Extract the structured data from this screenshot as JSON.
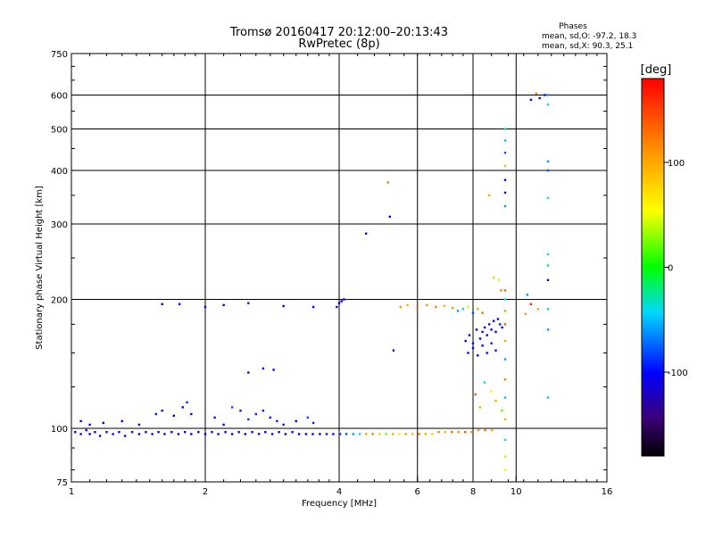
{
  "chart_data": {
    "type": "scatter",
    "title": "Tromsø 20160417 20:12:00–20:13:43",
    "subtitle": "RwPretec (8p)",
    "xlabel": "Frequency [MHz]",
    "ylabel": "Stationary phase Virtual Height [km]",
    "x_scale": "log2",
    "y_scale": "log",
    "xlim": [
      1,
      16
    ],
    "ylim": [
      75,
      750
    ],
    "x_ticks": [
      1,
      2,
      4,
      6,
      8,
      10,
      16
    ],
    "x_tick_labels": [
      "1",
      "2",
      "4",
      "6",
      "8",
      "10",
      "16"
    ],
    "y_ticks": [
      75,
      100,
      200,
      300,
      400,
      500,
      600,
      750
    ],
    "y_tick_labels": [
      "75",
      "100",
      "200",
      "300",
      "400",
      "500",
      "600",
      "750"
    ],
    "grid": true,
    "phase_box": {
      "title": "Phases",
      "line_o": "mean, sd,O: -97.2, 18.3",
      "line_x": "mean, sd,X:  90.3, 25.1"
    },
    "colorbar": {
      "label": "[deg]",
      "range": [
        -180,
        180
      ],
      "ticks": [
        100,
        0,
        -100
      ],
      "tick_labels": [
        "100",
        "0",
        "-100"
      ],
      "colormap": "rainbow"
    },
    "series": [
      {
        "points": [
          [
            1.02,
            98,
            -105
          ],
          [
            1.05,
            97,
            -110
          ],
          [
            1.08,
            99,
            -100
          ],
          [
            1.1,
            97,
            -108
          ],
          [
            1.13,
            98,
            -102
          ],
          [
            1.16,
            96,
            -112
          ],
          [
            1.2,
            98,
            -104
          ],
          [
            1.24,
            97,
            -106
          ],
          [
            1.28,
            98,
            -100
          ],
          [
            1.32,
            96,
            -110
          ],
          [
            1.37,
            98,
            -104
          ],
          [
            1.42,
            97,
            -108
          ],
          [
            1.47,
            98,
            -102
          ],
          [
            1.52,
            97,
            -106
          ],
          [
            1.57,
            98,
            -100
          ],
          [
            1.62,
            97,
            -110
          ],
          [
            1.68,
            98,
            -104
          ],
          [
            1.74,
            97,
            -106
          ],
          [
            1.8,
            98,
            -102
          ],
          [
            1.86,
            97,
            -108
          ],
          [
            1.93,
            98,
            -104
          ],
          [
            2.0,
            97,
            -100
          ],
          [
            2.07,
            98,
            -106
          ],
          [
            2.14,
            97,
            -104
          ],
          [
            2.22,
            98,
            -100
          ],
          [
            2.3,
            97,
            -108
          ],
          [
            2.38,
            98,
            -102
          ],
          [
            2.46,
            97,
            -106
          ],
          [
            2.55,
            98,
            -104
          ],
          [
            2.64,
            97,
            -100
          ],
          [
            2.73,
            98,
            -106
          ],
          [
            2.83,
            97,
            -104
          ],
          [
            2.93,
            98,
            -100
          ],
          [
            3.03,
            97,
            -108
          ],
          [
            3.14,
            98,
            -102
          ],
          [
            3.25,
            97,
            -106
          ],
          [
            3.37,
            97,
            -104
          ],
          [
            3.49,
            97,
            -100
          ],
          [
            3.62,
            97,
            -106
          ],
          [
            3.75,
            97,
            -98
          ],
          [
            3.88,
            97,
            -102
          ],
          [
            4.02,
            97,
            -90
          ],
          [
            4.15,
            97,
            -80
          ],
          [
            4.3,
            97,
            -60
          ],
          [
            4.45,
            97,
            -40
          ],
          [
            4.6,
            97,
            100
          ],
          [
            4.76,
            97,
            120
          ],
          [
            4.93,
            97,
            80
          ],
          [
            5.1,
            97,
            20
          ],
          [
            5.28,
            97,
            100
          ],
          [
            5.46,
            97,
            60
          ],
          [
            5.65,
            97,
            110
          ],
          [
            5.85,
            97,
            90
          ],
          [
            6.05,
            97,
            130
          ],
          [
            6.26,
            97,
            100
          ],
          [
            6.48,
            97,
            80
          ],
          [
            6.7,
            98,
            120
          ],
          [
            6.93,
            98,
            100
          ],
          [
            7.17,
            98,
            130
          ],
          [
            7.42,
            98,
            110
          ],
          [
            7.68,
            98,
            140
          ],
          [
            7.95,
            98,
            120
          ],
          [
            8.23,
            99,
            110
          ],
          [
            8.52,
            99,
            130
          ],
          [
            8.82,
            99,
            100
          ],
          [
            1.05,
            104,
            -110
          ],
          [
            1.1,
            102,
            -100
          ],
          [
            1.18,
            103,
            -105
          ],
          [
            1.3,
            104,
            -110
          ],
          [
            1.42,
            102,
            -100
          ],
          [
            1.55,
            108,
            -95
          ],
          [
            1.6,
            110,
            -100
          ],
          [
            1.7,
            107,
            -105
          ],
          [
            1.78,
            112,
            -100
          ],
          [
            1.82,
            115,
            -90
          ],
          [
            1.86,
            108,
            -100
          ],
          [
            2.1,
            106,
            -95
          ],
          [
            2.2,
            102,
            -100
          ],
          [
            2.3,
            112,
            -80
          ],
          [
            2.4,
            110,
            -95
          ],
          [
            2.5,
            105,
            -85
          ],
          [
            2.6,
            108,
            -90
          ],
          [
            2.7,
            110,
            -95
          ],
          [
            2.8,
            106,
            -100
          ],
          [
            2.9,
            104,
            -90
          ],
          [
            3.0,
            102,
            -95
          ],
          [
            3.2,
            104,
            -100
          ],
          [
            3.4,
            106,
            -80
          ],
          [
            3.5,
            103,
            -90
          ],
          [
            1.6,
            195,
            -110
          ],
          [
            1.75,
            195,
            -105
          ],
          [
            2.0,
            192,
            -100
          ],
          [
            2.2,
            194,
            -110
          ],
          [
            2.5,
            196,
            -95
          ],
          [
            3.0,
            193,
            -105
          ],
          [
            3.5,
            192,
            -100
          ],
          [
            3.95,
            192,
            -120
          ],
          [
            4.0,
            196,
            -110
          ],
          [
            4.05,
            198,
            -100
          ],
          [
            4.1,
            200,
            -105
          ],
          [
            2.5,
            135,
            -105
          ],
          [
            2.7,
            138,
            -100
          ],
          [
            2.85,
            137,
            -100
          ],
          [
            4.6,
            285,
            -110
          ],
          [
            5.2,
            312,
            -100
          ],
          [
            5.3,
            152,
            -120
          ],
          [
            5.15,
            375,
            120
          ],
          [
            5.5,
            192,
            110
          ],
          [
            5.7,
            194,
            100
          ],
          [
            6.0,
            192,
            130
          ],
          [
            6.3,
            194,
            110
          ],
          [
            6.6,
            192,
            120
          ],
          [
            6.9,
            193,
            100
          ],
          [
            7.2,
            191,
            110
          ],
          [
            7.4,
            188,
            -60
          ],
          [
            7.6,
            190,
            -40
          ],
          [
            7.8,
            192,
            40
          ],
          [
            8.0,
            186,
            -80
          ],
          [
            8.2,
            190,
            100
          ],
          [
            8.4,
            186,
            130
          ],
          [
            7.7,
            160,
            -110
          ],
          [
            7.85,
            165,
            -100
          ],
          [
            8.0,
            158,
            -95
          ],
          [
            8.15,
            170,
            -110
          ],
          [
            8.3,
            162,
            -100
          ],
          [
            8.4,
            168,
            -105
          ],
          [
            8.5,
            172,
            -110
          ],
          [
            8.6,
            165,
            -100
          ],
          [
            8.7,
            175,
            -95
          ],
          [
            8.8,
            170,
            -100
          ],
          [
            8.9,
            178,
            -105
          ],
          [
            9.0,
            168,
            -110
          ],
          [
            9.1,
            180,
            -100
          ],
          [
            9.2,
            175,
            -95
          ],
          [
            9.3,
            172,
            -100
          ],
          [
            7.8,
            150,
            -105
          ],
          [
            8.0,
            154,
            -100
          ],
          [
            8.2,
            148,
            -110
          ],
          [
            8.4,
            156,
            -105
          ],
          [
            8.6,
            150,
            -100
          ],
          [
            8.8,
            158,
            -95
          ],
          [
            9.0,
            152,
            -110
          ],
          [
            8.1,
            120,
            140
          ],
          [
            8.3,
            112,
            100
          ],
          [
            8.5,
            128,
            -40
          ],
          [
            8.8,
            122,
            60
          ],
          [
            9.0,
            116,
            100
          ],
          [
            9.3,
            110,
            20
          ],
          [
            9.45,
            500,
            -40
          ],
          [
            9.45,
            470,
            -50
          ],
          [
            9.45,
            440,
            -80
          ],
          [
            9.45,
            410,
            90
          ],
          [
            9.45,
            380,
            -100
          ],
          [
            9.45,
            355,
            -120
          ],
          [
            9.45,
            330,
            -60
          ],
          [
            9.45,
            210,
            130
          ],
          [
            9.45,
            200,
            -40
          ],
          [
            9.45,
            188,
            110
          ],
          [
            9.45,
            175,
            140
          ],
          [
            9.45,
            160,
            100
          ],
          [
            9.45,
            145,
            -60
          ],
          [
            9.45,
            130,
            120
          ],
          [
            9.45,
            118,
            -50
          ],
          [
            9.45,
            105,
            100
          ],
          [
            9.45,
            94,
            -40
          ],
          [
            9.45,
            86,
            40
          ],
          [
            9.45,
            80,
            60
          ],
          [
            9.15,
            222,
            40
          ],
          [
            9.25,
            210,
            120
          ],
          [
            8.7,
            350,
            100
          ],
          [
            8.9,
            225,
            80
          ],
          [
            10.8,
            585,
            -110
          ],
          [
            11.3,
            590,
            -100
          ],
          [
            11.6,
            600,
            -95
          ],
          [
            11.1,
            605,
            120
          ],
          [
            11.8,
            600,
            -60
          ],
          [
            11.8,
            570,
            -40
          ],
          [
            11.8,
            420,
            -60
          ],
          [
            11.8,
            400,
            -80
          ],
          [
            11.8,
            345,
            -40
          ],
          [
            11.8,
            255,
            -30
          ],
          [
            11.8,
            240,
            -20
          ],
          [
            11.8,
            222,
            -110
          ],
          [
            11.8,
            190,
            -40
          ],
          [
            11.8,
            170,
            -60
          ],
          [
            11.8,
            118,
            -50
          ],
          [
            10.6,
            205,
            -60
          ],
          [
            10.8,
            195,
            160
          ],
          [
            10.5,
            185,
            110
          ],
          [
            11.2,
            190,
            100
          ]
        ]
      }
    ]
  }
}
